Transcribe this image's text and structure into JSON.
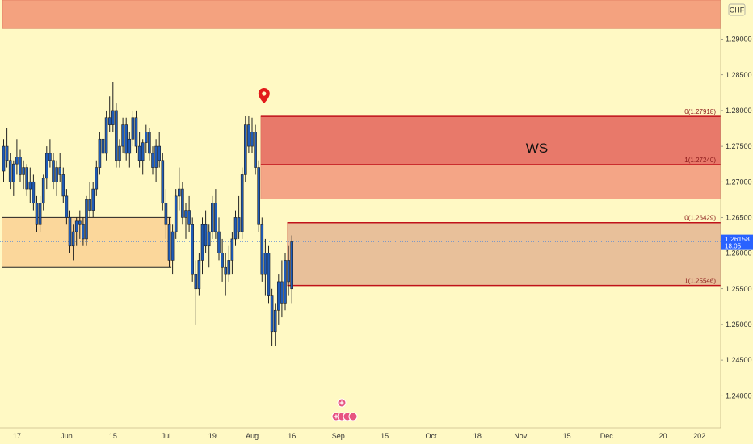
{
  "chart_data": {
    "type": "candlestick",
    "currency_label": "CHF",
    "y_range": [
      1.2355,
      1.2955
    ],
    "y_ticks": [
      "1.29000",
      "1.28500",
      "1.28000",
      "1.27500",
      "1.27000",
      "1.26500",
      "1.26000",
      "1.25500",
      "1.25000",
      "1.24500",
      "1.24000"
    ],
    "x_ticks": [
      {
        "label": "17",
        "x": 0
      },
      {
        "label": "Jun",
        "x": 15
      },
      {
        "label": "15",
        "x": 29
      },
      {
        "label": "Jul",
        "x": 45
      },
      {
        "label": "19",
        "x": 59
      },
      {
        "label": "Aug",
        "x": 71
      },
      {
        "label": "16",
        "x": 83
      },
      {
        "label": "Sep",
        "x": 97
      },
      {
        "label": "15",
        "x": 111
      },
      {
        "label": "Oct",
        "x": 125
      },
      {
        "label": "18",
        "x": 139
      },
      {
        "label": "Nov",
        "x": 152
      },
      {
        "label": "15",
        "x": 166
      },
      {
        "label": "Dec",
        "x": 178
      },
      {
        "label": "20",
        "x": 195
      },
      {
        "label": "202",
        "x": 206
      }
    ],
    "last_price": {
      "value": "1.26158",
      "countdown": "18:05",
      "y": 1.26158
    },
    "zones": [
      {
        "name": "top-resistance-zone",
        "color": "#f4a27f",
        "x0": 0,
        "x1": null,
        "y0": 1.2915,
        "y1": 1.299
      },
      {
        "name": "ws-zone-upper",
        "color": "#e8796a",
        "x0": 78,
        "x1": null,
        "y0": 1.2724,
        "y1": 1.27918
      },
      {
        "name": "ws-zone-lower",
        "color": "#f4a586",
        "x0": 78,
        "x1": null,
        "y0": 1.2676,
        "y1": 1.2724
      },
      {
        "name": "demand-zone",
        "color": "#e8c09a",
        "x0": 86,
        "x1": null,
        "y0": 1.25546,
        "y1": 1.26429
      },
      {
        "name": "left-support-zone",
        "color": "#fbd79b",
        "x0": 0,
        "x1": 51,
        "y0": 1.258,
        "y1": 1.265
      }
    ],
    "levels": [
      {
        "label": "0(1.27918)",
        "y": 1.27918,
        "x0": 78
      },
      {
        "label": "1(1.27240)",
        "y": 1.2724,
        "x0": 78
      },
      {
        "label": "0(1.26429)",
        "y": 1.26429,
        "x0": 86
      },
      {
        "label": "1(1.25546)",
        "y": 1.25546,
        "x0": 86
      }
    ],
    "annotation": {
      "text": "WS",
      "x": 158,
      "y": 1.2741
    },
    "candles": [
      [
        1.2715,
        1.276,
        1.27,
        1.275
      ],
      [
        1.275,
        1.2775,
        1.272,
        1.273
      ],
      [
        1.273,
        1.274,
        1.269,
        1.27
      ],
      [
        1.27,
        1.273,
        1.268,
        1.2725
      ],
      [
        1.2725,
        1.276,
        1.271,
        1.2735
      ],
      [
        1.2735,
        1.2745,
        1.27,
        1.271
      ],
      [
        1.271,
        1.273,
        1.269,
        1.272
      ],
      [
        1.272,
        1.2725,
        1.268,
        1.269
      ],
      [
        1.269,
        1.272,
        1.267,
        1.27
      ],
      [
        1.27,
        1.271,
        1.266,
        1.267
      ],
      [
        1.267,
        1.268,
        1.263,
        1.264
      ],
      [
        1.264,
        1.268,
        1.263,
        1.267
      ],
      [
        1.267,
        1.271,
        1.266,
        1.2705
      ],
      [
        1.2705,
        1.275,
        1.269,
        1.274
      ],
      [
        1.274,
        1.276,
        1.272,
        1.273
      ],
      [
        1.273,
        1.274,
        1.269,
        1.27
      ],
      [
        1.27,
        1.273,
        1.268,
        1.272
      ],
      [
        1.272,
        1.274,
        1.27,
        1.271
      ],
      [
        1.271,
        1.272,
        1.267,
        1.268
      ],
      [
        1.268,
        1.269,
        1.264,
        1.265
      ],
      [
        1.265,
        1.266,
        1.26,
        1.261
      ],
      [
        1.261,
        1.264,
        1.259,
        1.263
      ],
      [
        1.263,
        1.265,
        1.261,
        1.2645
      ],
      [
        1.2645,
        1.266,
        1.262,
        1.264
      ],
      [
        1.264,
        1.265,
        1.261,
        1.262
      ],
      [
        1.262,
        1.268,
        1.261,
        1.2675
      ],
      [
        1.2675,
        1.27,
        1.265,
        1.266
      ],
      [
        1.266,
        1.27,
        1.265,
        1.269
      ],
      [
        1.269,
        1.273,
        1.268,
        1.272
      ],
      [
        1.272,
        1.277,
        1.271,
        1.276
      ],
      [
        1.276,
        1.278,
        1.273,
        1.274
      ],
      [
        1.274,
        1.28,
        1.273,
        1.279
      ],
      [
        1.279,
        1.282,
        1.277,
        1.278
      ],
      [
        1.278,
        1.284,
        1.277,
        1.28
      ],
      [
        1.28,
        1.281,
        1.272,
        1.273
      ],
      [
        1.273,
        1.276,
        1.272,
        1.275
      ],
      [
        1.275,
        1.279,
        1.274,
        1.278
      ],
      [
        1.278,
        1.279,
        1.273,
        1.274
      ],
      [
        1.274,
        1.277,
        1.272,
        1.276
      ],
      [
        1.276,
        1.28,
        1.275,
        1.279
      ],
      [
        1.279,
        1.28,
        1.274,
        1.275
      ],
      [
        1.275,
        1.277,
        1.272,
        1.273
      ],
      [
        1.273,
        1.276,
        1.271,
        1.2755
      ],
      [
        1.2755,
        1.278,
        1.274,
        1.277
      ],
      [
        1.277,
        1.2775,
        1.273,
        1.274
      ],
      [
        1.274,
        1.275,
        1.271,
        1.272
      ],
      [
        1.272,
        1.276,
        1.27,
        1.275
      ],
      [
        1.275,
        1.277,
        1.272,
        1.273
      ],
      [
        1.273,
        1.274,
        1.266,
        1.267
      ],
      [
        1.267,
        1.269,
        1.262,
        1.264
      ],
      [
        1.264,
        1.265,
        1.258,
        1.259
      ],
      [
        1.259,
        1.264,
        1.257,
        1.263
      ],
      [
        1.263,
        1.269,
        1.262,
        1.268
      ],
      [
        1.268,
        1.272,
        1.266,
        1.269
      ],
      [
        1.269,
        1.27,
        1.264,
        1.265
      ],
      [
        1.265,
        1.267,
        1.262,
        1.266
      ],
      [
        1.266,
        1.268,
        1.263,
        1.264
      ],
      [
        1.264,
        1.265,
        1.256,
        1.257
      ],
      [
        1.257,
        1.259,
        1.25,
        1.255
      ],
      [
        1.255,
        1.26,
        1.254,
        1.259
      ],
      [
        1.259,
        1.265,
        1.257,
        1.264
      ],
      [
        1.264,
        1.266,
        1.26,
        1.261
      ],
      [
        1.261,
        1.264,
        1.258,
        1.263
      ],
      [
        1.263,
        1.268,
        1.262,
        1.267
      ],
      [
        1.267,
        1.269,
        1.262,
        1.263
      ],
      [
        1.263,
        1.265,
        1.259,
        1.26
      ],
      [
        1.26,
        1.262,
        1.256,
        1.258
      ],
      [
        1.258,
        1.26,
        1.254,
        1.257
      ],
      [
        1.257,
        1.261,
        1.256,
        1.259
      ],
      [
        1.259,
        1.263,
        1.257,
        1.262
      ],
      [
        1.262,
        1.266,
        1.261,
        1.265
      ],
      [
        1.265,
        1.268,
        1.262,
        1.263
      ],
      [
        1.263,
        1.272,
        1.262,
        1.271
      ],
      [
        1.271,
        1.2792,
        1.27,
        1.278
      ],
      [
        1.278,
        1.2792,
        1.274,
        1.275
      ],
      [
        1.275,
        1.279,
        1.274,
        1.277
      ],
      [
        1.277,
        1.278,
        1.271,
        1.272
      ],
      [
        1.272,
        1.273,
        1.263,
        1.264
      ],
      [
        1.264,
        1.265,
        1.256,
        1.257
      ],
      [
        1.257,
        1.262,
        1.254,
        1.26
      ],
      [
        1.26,
        1.261,
        1.253,
        1.254
      ],
      [
        1.254,
        1.255,
        1.247,
        1.249
      ],
      [
        1.249,
        1.253,
        1.247,
        1.252
      ],
      [
        1.252,
        1.257,
        1.25,
        1.256
      ],
      [
        1.256,
        1.259,
        1.251,
        1.253
      ],
      [
        1.253,
        1.26,
        1.252,
        1.259
      ],
      [
        1.259,
        1.261,
        1.254,
        1.256
      ],
      [
        1.255,
        1.2625,
        1.253,
        1.2616
      ]
    ]
  }
}
